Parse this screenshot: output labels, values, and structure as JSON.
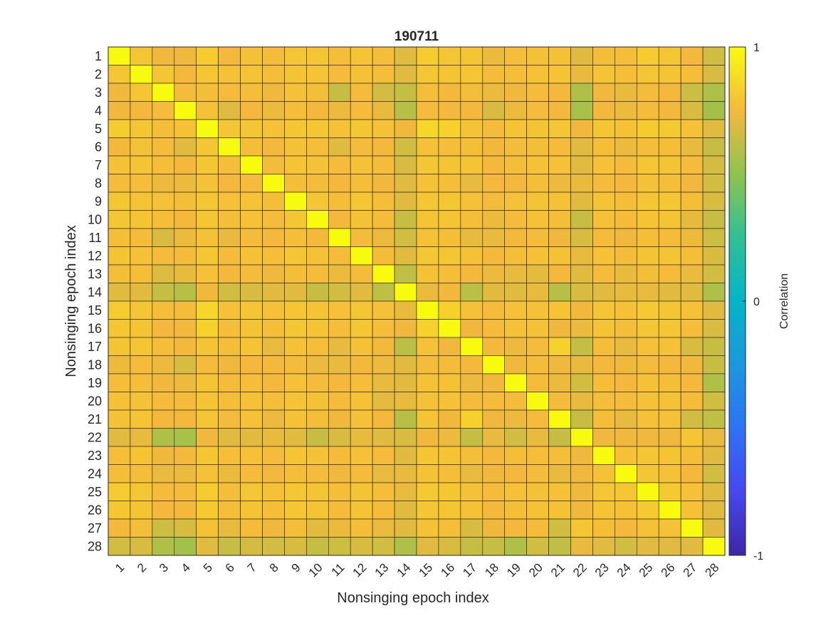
{
  "chart_data": {
    "type": "heatmap",
    "title": "190711",
    "xlabel": "Nonsinging epoch index",
    "ylabel": "Nonsinging epoch index",
    "colorbar_label": "Correlation",
    "colorbar_ticks": [
      "1",
      "0",
      "-1"
    ],
    "clim": [
      -1,
      1
    ],
    "colormap": "parula",
    "grid": true,
    "x_ticks": [
      "1",
      "2",
      "3",
      "4",
      "5",
      "6",
      "7",
      "8",
      "9",
      "10",
      "11",
      "12",
      "13",
      "14",
      "15",
      "16",
      "17",
      "18",
      "19",
      "20",
      "21",
      "22",
      "23",
      "24",
      "25",
      "26",
      "27",
      "28"
    ],
    "y_ticks": [
      "1",
      "2",
      "3",
      "4",
      "5",
      "6",
      "7",
      "8",
      "9",
      "10",
      "11",
      "12",
      "13",
      "14",
      "15",
      "16",
      "17",
      "18",
      "19",
      "20",
      "21",
      "22",
      "23",
      "24",
      "25",
      "26",
      "27",
      "28"
    ],
    "values": [
      [
        1.0,
        0.8,
        0.74,
        0.74,
        0.82,
        0.75,
        0.78,
        0.76,
        0.8,
        0.8,
        0.77,
        0.79,
        0.77,
        0.7,
        0.82,
        0.8,
        0.79,
        0.73,
        0.77,
        0.78,
        0.78,
        0.7,
        0.77,
        0.77,
        0.82,
        0.8,
        0.75,
        0.66
      ],
      [
        0.8,
        1.0,
        0.8,
        0.75,
        0.8,
        0.78,
        0.79,
        0.77,
        0.79,
        0.79,
        0.76,
        0.78,
        0.77,
        0.7,
        0.8,
        0.79,
        0.8,
        0.76,
        0.77,
        0.78,
        0.79,
        0.72,
        0.79,
        0.77,
        0.8,
        0.79,
        0.77,
        0.68
      ],
      [
        0.74,
        0.8,
        1.0,
        0.76,
        0.77,
        0.76,
        0.77,
        0.74,
        0.78,
        0.77,
        0.64,
        0.76,
        0.67,
        0.63,
        0.77,
        0.75,
        0.77,
        0.73,
        0.74,
        0.76,
        0.75,
        0.58,
        0.74,
        0.72,
        0.76,
        0.75,
        0.65,
        0.58
      ],
      [
        0.74,
        0.75,
        0.76,
        1.0,
        0.78,
        0.7,
        0.75,
        0.73,
        0.77,
        0.75,
        0.73,
        0.76,
        0.72,
        0.6,
        0.76,
        0.75,
        0.75,
        0.68,
        0.73,
        0.76,
        0.75,
        0.56,
        0.75,
        0.73,
        0.76,
        0.75,
        0.68,
        0.55
      ],
      [
        0.82,
        0.8,
        0.77,
        0.78,
        1.0,
        0.8,
        0.8,
        0.78,
        0.8,
        0.8,
        0.78,
        0.8,
        0.78,
        0.74,
        0.86,
        0.84,
        0.79,
        0.76,
        0.79,
        0.79,
        0.8,
        0.74,
        0.8,
        0.78,
        0.82,
        0.81,
        0.78,
        0.7
      ],
      [
        0.75,
        0.78,
        0.76,
        0.7,
        0.8,
        1.0,
        0.77,
        0.75,
        0.78,
        0.77,
        0.7,
        0.76,
        0.75,
        0.66,
        0.78,
        0.77,
        0.77,
        0.74,
        0.76,
        0.77,
        0.76,
        0.7,
        0.77,
        0.73,
        0.77,
        0.77,
        0.72,
        0.64
      ],
      [
        0.78,
        0.79,
        0.77,
        0.75,
        0.8,
        0.77,
        1.0,
        0.76,
        0.79,
        0.78,
        0.76,
        0.78,
        0.76,
        0.68,
        0.8,
        0.79,
        0.79,
        0.75,
        0.77,
        0.78,
        0.78,
        0.7,
        0.78,
        0.76,
        0.8,
        0.79,
        0.76,
        0.67
      ],
      [
        0.76,
        0.77,
        0.73,
        0.73,
        0.78,
        0.75,
        0.76,
        1.0,
        0.77,
        0.76,
        0.75,
        0.77,
        0.74,
        0.7,
        0.78,
        0.77,
        0.72,
        0.75,
        0.75,
        0.77,
        0.73,
        0.72,
        0.76,
        0.75,
        0.78,
        0.77,
        0.74,
        0.66
      ],
      [
        0.8,
        0.79,
        0.78,
        0.77,
        0.8,
        0.78,
        0.79,
        0.77,
        1.0,
        0.8,
        0.77,
        0.8,
        0.77,
        0.7,
        0.8,
        0.8,
        0.78,
        0.76,
        0.78,
        0.79,
        0.78,
        0.7,
        0.79,
        0.77,
        0.8,
        0.8,
        0.77,
        0.68
      ],
      [
        0.8,
        0.79,
        0.77,
        0.75,
        0.8,
        0.77,
        0.78,
        0.76,
        0.8,
        1.0,
        0.75,
        0.78,
        0.76,
        0.64,
        0.79,
        0.79,
        0.77,
        0.73,
        0.76,
        0.78,
        0.77,
        0.64,
        0.78,
        0.76,
        0.79,
        0.79,
        0.71,
        0.64
      ],
      [
        0.77,
        0.76,
        0.68,
        0.73,
        0.78,
        0.72,
        0.76,
        0.75,
        0.77,
        0.75,
        1.0,
        0.76,
        0.73,
        0.66,
        0.78,
        0.77,
        0.72,
        0.72,
        0.75,
        0.76,
        0.74,
        0.68,
        0.76,
        0.74,
        0.77,
        0.76,
        0.73,
        0.65
      ],
      [
        0.79,
        0.78,
        0.76,
        0.76,
        0.8,
        0.76,
        0.78,
        0.77,
        0.8,
        0.78,
        0.76,
        1.0,
        0.76,
        0.7,
        0.8,
        0.8,
        0.78,
        0.75,
        0.77,
        0.78,
        0.78,
        0.72,
        0.78,
        0.76,
        0.79,
        0.79,
        0.77,
        0.68
      ],
      [
        0.77,
        0.77,
        0.69,
        0.72,
        0.78,
        0.75,
        0.76,
        0.74,
        0.77,
        0.76,
        0.73,
        0.76,
        1.0,
        0.62,
        0.78,
        0.77,
        0.75,
        0.73,
        0.72,
        0.71,
        0.75,
        0.7,
        0.76,
        0.72,
        0.77,
        0.76,
        0.73,
        0.66
      ],
      [
        0.7,
        0.7,
        0.63,
        0.6,
        0.74,
        0.66,
        0.68,
        0.7,
        0.7,
        0.64,
        0.66,
        0.7,
        0.62,
        1.0,
        0.72,
        0.74,
        0.61,
        0.7,
        0.7,
        0.72,
        0.6,
        0.68,
        0.7,
        0.72,
        0.72,
        0.7,
        0.7,
        0.58
      ],
      [
        0.82,
        0.8,
        0.77,
        0.76,
        0.86,
        0.78,
        0.8,
        0.78,
        0.8,
        0.79,
        0.78,
        0.8,
        0.78,
        0.72,
        1.0,
        0.84,
        0.78,
        0.76,
        0.78,
        0.78,
        0.79,
        0.74,
        0.8,
        0.78,
        0.81,
        0.8,
        0.78,
        0.7
      ],
      [
        0.8,
        0.79,
        0.75,
        0.75,
        0.84,
        0.77,
        0.79,
        0.77,
        0.8,
        0.79,
        0.77,
        0.8,
        0.77,
        0.74,
        0.84,
        1.0,
        0.74,
        0.76,
        0.78,
        0.78,
        0.74,
        0.73,
        0.79,
        0.77,
        0.8,
        0.8,
        0.77,
        0.68
      ],
      [
        0.79,
        0.8,
        0.77,
        0.75,
        0.79,
        0.77,
        0.79,
        0.72,
        0.78,
        0.77,
        0.72,
        0.78,
        0.75,
        0.61,
        0.78,
        0.74,
        1.0,
        0.75,
        0.73,
        0.76,
        0.84,
        0.63,
        0.77,
        0.72,
        0.78,
        0.78,
        0.68,
        0.64
      ],
      [
        0.73,
        0.76,
        0.73,
        0.68,
        0.76,
        0.74,
        0.75,
        0.75,
        0.76,
        0.73,
        0.72,
        0.75,
        0.73,
        0.7,
        0.76,
        0.76,
        0.75,
        1.0,
        0.74,
        0.76,
        0.74,
        0.72,
        0.75,
        0.74,
        0.76,
        0.75,
        0.74,
        0.64
      ],
      [
        0.77,
        0.77,
        0.74,
        0.73,
        0.79,
        0.76,
        0.77,
        0.75,
        0.78,
        0.76,
        0.75,
        0.77,
        0.72,
        0.7,
        0.78,
        0.78,
        0.73,
        0.74,
        1.0,
        0.76,
        0.73,
        0.66,
        0.77,
        0.75,
        0.78,
        0.77,
        0.75,
        0.58
      ],
      [
        0.78,
        0.78,
        0.76,
        0.76,
        0.79,
        0.77,
        0.78,
        0.77,
        0.79,
        0.78,
        0.76,
        0.78,
        0.71,
        0.72,
        0.78,
        0.78,
        0.76,
        0.76,
        0.76,
        1.0,
        0.76,
        0.72,
        0.77,
        0.76,
        0.78,
        0.78,
        0.76,
        0.66
      ],
      [
        0.78,
        0.79,
        0.75,
        0.75,
        0.8,
        0.76,
        0.78,
        0.73,
        0.78,
        0.77,
        0.74,
        0.78,
        0.75,
        0.6,
        0.79,
        0.74,
        0.84,
        0.74,
        0.73,
        0.76,
        1.0,
        0.64,
        0.77,
        0.72,
        0.78,
        0.78,
        0.66,
        0.62
      ],
      [
        0.7,
        0.72,
        0.58,
        0.56,
        0.74,
        0.7,
        0.7,
        0.72,
        0.7,
        0.64,
        0.68,
        0.72,
        0.7,
        0.68,
        0.74,
        0.73,
        0.63,
        0.72,
        0.66,
        0.72,
        0.64,
        1.0,
        0.74,
        0.74,
        0.74,
        0.74,
        0.8,
        0.72
      ],
      [
        0.77,
        0.79,
        0.74,
        0.75,
        0.8,
        0.77,
        0.78,
        0.76,
        0.79,
        0.78,
        0.76,
        0.78,
        0.76,
        0.7,
        0.8,
        0.79,
        0.77,
        0.75,
        0.77,
        0.77,
        0.77,
        0.74,
        1.0,
        0.78,
        0.8,
        0.79,
        0.77,
        0.7
      ],
      [
        0.77,
        0.77,
        0.72,
        0.73,
        0.78,
        0.73,
        0.76,
        0.75,
        0.77,
        0.76,
        0.74,
        0.76,
        0.72,
        0.72,
        0.78,
        0.77,
        0.72,
        0.74,
        0.75,
        0.76,
        0.72,
        0.74,
        0.78,
        1.0,
        0.8,
        0.78,
        0.75,
        0.66
      ],
      [
        0.82,
        0.8,
        0.76,
        0.76,
        0.82,
        0.77,
        0.8,
        0.78,
        0.8,
        0.79,
        0.77,
        0.79,
        0.77,
        0.72,
        0.81,
        0.8,
        0.78,
        0.76,
        0.78,
        0.78,
        0.78,
        0.74,
        0.8,
        0.8,
        1.0,
        0.81,
        0.78,
        0.7
      ],
      [
        0.8,
        0.79,
        0.75,
        0.75,
        0.81,
        0.77,
        0.79,
        0.77,
        0.8,
        0.79,
        0.76,
        0.79,
        0.76,
        0.7,
        0.8,
        0.8,
        0.78,
        0.75,
        0.77,
        0.78,
        0.78,
        0.74,
        0.79,
        0.78,
        0.81,
        1.0,
        0.78,
        0.7
      ],
      [
        0.75,
        0.77,
        0.65,
        0.68,
        0.78,
        0.72,
        0.76,
        0.74,
        0.77,
        0.71,
        0.73,
        0.77,
        0.73,
        0.7,
        0.78,
        0.77,
        0.68,
        0.74,
        0.75,
        0.76,
        0.66,
        0.8,
        0.77,
        0.75,
        0.78,
        0.78,
        1.0,
        0.7
      ],
      [
        0.66,
        0.68,
        0.58,
        0.55,
        0.7,
        0.64,
        0.67,
        0.66,
        0.68,
        0.64,
        0.65,
        0.68,
        0.66,
        0.58,
        0.7,
        0.68,
        0.64,
        0.64,
        0.58,
        0.66,
        0.62,
        0.72,
        0.7,
        0.66,
        0.7,
        0.7,
        0.7,
        1.0
      ]
    ]
  }
}
